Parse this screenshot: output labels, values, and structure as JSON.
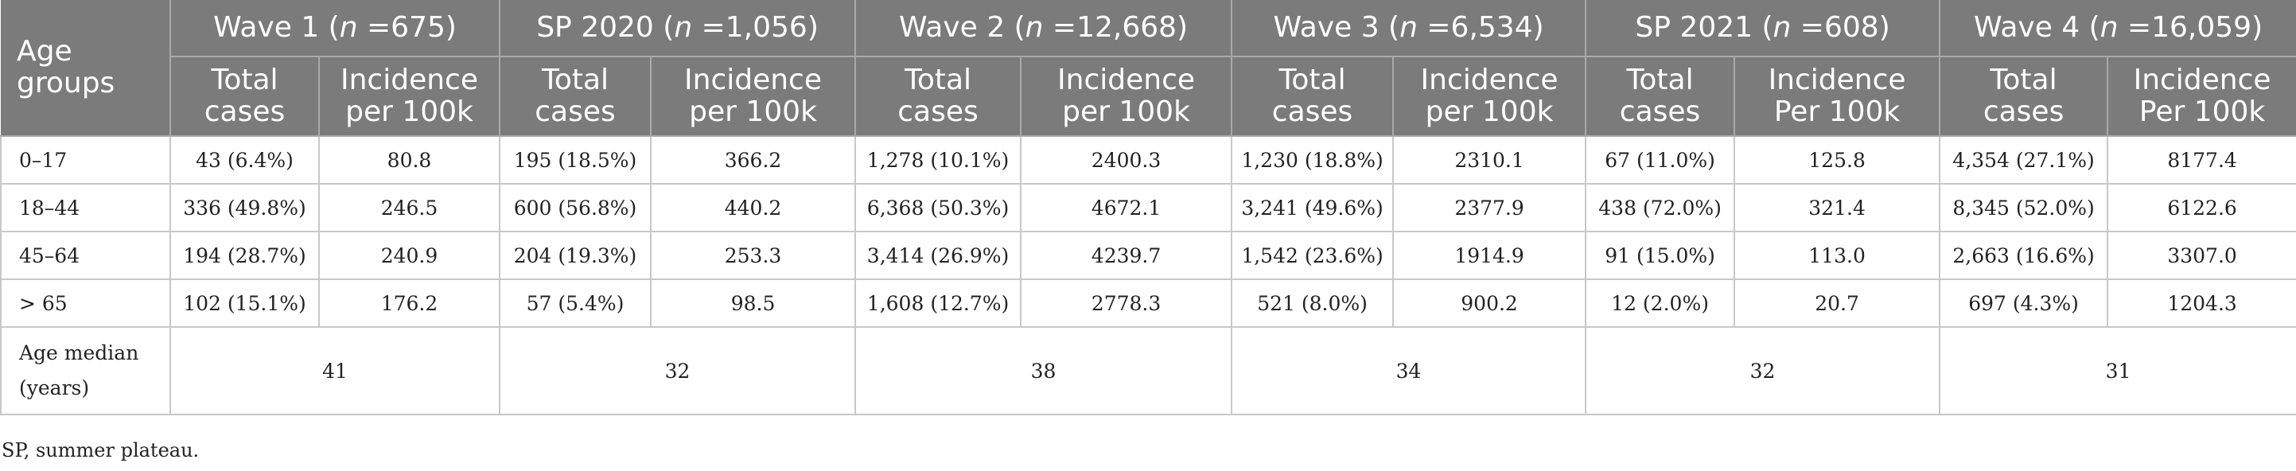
{
  "header": {
    "age_groups": "Age groups",
    "sub_total": "Total cases",
    "sub_incidence": "Incidence per 100k",
    "sub_incidence_cap": "Incidence Per 100k",
    "n_prefix": "n",
    "waves": [
      {
        "name": "Wave 1",
        "n": "675"
      },
      {
        "name": "SP 2020",
        "n": "1,056"
      },
      {
        "name": "Wave 2",
        "n": "12,668"
      },
      {
        "name": "Wave 3",
        "n": "6,534"
      },
      {
        "name": "SP 2021",
        "n": "608"
      },
      {
        "name": "Wave 4",
        "n": "16,059"
      }
    ]
  },
  "rows": [
    {
      "group": "0–17",
      "cells": [
        "43 (6.4%)",
        "80.8",
        "195 (18.5%)",
        "366.2",
        "1,278 (10.1%)",
        "2400.3",
        "1,230 (18.8%)",
        "2310.1",
        "67 (11.0%)",
        "125.8",
        "4,354 (27.1%)",
        "8177.4"
      ]
    },
    {
      "group": "18–44",
      "cells": [
        "336 (49.8%)",
        "246.5",
        "600 (56.8%)",
        "440.2",
        "6,368 (50.3%)",
        "4672.1",
        "3,241 (49.6%)",
        "2377.9",
        "438 (72.0%)",
        "321.4",
        "8,345 (52.0%)",
        "6122.6"
      ]
    },
    {
      "group": "45–64",
      "cells": [
        "194 (28.7%)",
        "240.9",
        "204 (19.3%)",
        "253.3",
        "3,414 (26.9%)",
        "4239.7",
        "1,542 (23.6%)",
        "1914.9",
        "91 (15.0%)",
        "113.0",
        "2,663 (16.6%)",
        "3307.0"
      ]
    },
    {
      "group": "> 65",
      "cells": [
        "102 (15.1%)",
        "176.2",
        "57 (5.4%)",
        "98.5",
        "1,608 (12.7%)",
        "2778.3",
        "521 (8.0%)",
        "900.2",
        "12 (2.0%)",
        "20.7",
        "697 (4.3%)",
        "1204.3"
      ]
    }
  ],
  "median": {
    "label": "Age median (years)",
    "values": [
      "41",
      "32",
      "38",
      "34",
      "32",
      "31"
    ]
  },
  "footnote": "SP, summer plateau."
}
